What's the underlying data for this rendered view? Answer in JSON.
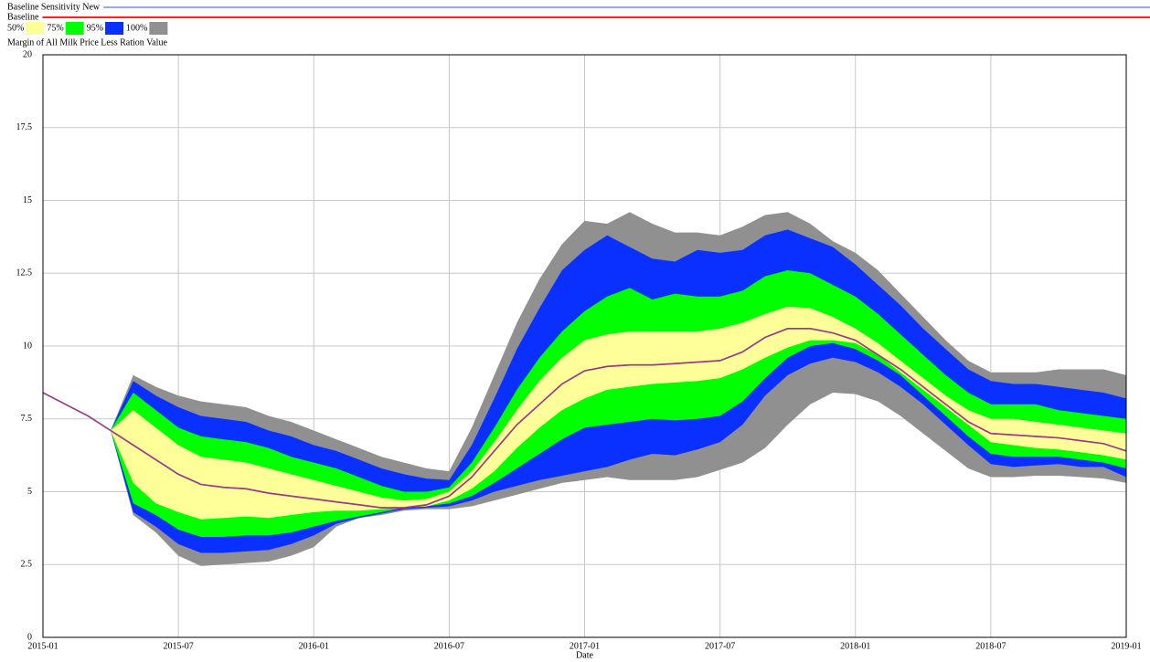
{
  "chart_data": {
    "type": "sensitivity",
    "title": "Margin of All Milk Price Less Ration Value",
    "x_label": "Date",
    "x": [
      "2015-01",
      "2015-02",
      "2015-03",
      "2015-04",
      "2015-05",
      "2015-06",
      "2015-07",
      "2015-08",
      "2015-09",
      "2015-10",
      "2015-11",
      "2015-12",
      "2016-01",
      "2016-02",
      "2016-03",
      "2016-04",
      "2016-05",
      "2016-06",
      "2016-07",
      "2016-08",
      "2016-09",
      "2016-10",
      "2016-11",
      "2016-12",
      "2017-01",
      "2017-02",
      "2017-03",
      "2017-04",
      "2017-05",
      "2017-06",
      "2017-07",
      "2017-08",
      "2017-09",
      "2017-10",
      "2017-11",
      "2017-12",
      "2018-01",
      "2018-02",
      "2018-03",
      "2018-04",
      "2018-05",
      "2018-06",
      "2018-07",
      "2018-08",
      "2018-09",
      "2018-10",
      "2018-11",
      "2018-12",
      "2019-01"
    ],
    "xticks": [
      "2015-01",
      "2015-07",
      "2016-01",
      "2016-07",
      "2017-01",
      "2017-07",
      "2018-01",
      "2018-07",
      "2019-01"
    ],
    "ylim": [
      0,
      20
    ],
    "yticks": [
      0,
      2.5,
      5,
      7.5,
      10,
      12.5,
      15,
      17.5,
      20
    ],
    "grid": true,
    "series": [
      {
        "name": "Baseline Sensitivity New",
        "color": "#3050ff",
        "values": [
          8.4,
          8.0,
          7.6,
          7.1,
          6.6,
          6.1,
          5.6,
          5.25,
          5.15,
          5.1,
          4.95,
          4.85,
          4.75,
          4.65,
          4.55,
          4.45,
          4.45,
          4.55,
          4.85,
          5.5,
          6.4,
          7.3,
          8.0,
          8.7,
          9.15,
          9.3,
          9.35,
          9.35,
          9.4,
          9.45,
          9.5,
          9.8,
          10.3,
          10.6,
          10.6,
          10.45,
          10.2,
          9.7,
          9.2,
          8.6,
          8.0,
          7.4,
          7.0,
          6.95,
          6.9,
          6.85,
          6.75,
          6.65,
          6.4
        ]
      },
      {
        "name": "Baseline",
        "color": "#ff2020",
        "values": [
          8.4,
          8.0,
          7.6,
          7.1,
          6.6,
          6.1,
          5.6,
          5.25,
          5.15,
          5.1,
          4.95,
          4.85,
          4.75,
          4.65,
          4.55,
          4.45,
          4.45,
          4.55,
          4.85,
          5.5,
          6.4,
          7.3,
          8.0,
          8.7,
          9.15,
          9.3,
          9.35,
          9.35,
          9.4,
          9.45,
          9.5,
          9.8,
          10.3,
          10.6,
          10.6,
          10.45,
          10.2,
          9.7,
          9.2,
          8.6,
          8.0,
          7.4,
          7.0,
          6.95,
          6.9,
          6.85,
          6.75,
          6.65,
          6.4
        ]
      }
    ],
    "bands": [
      {
        "name": "50%",
        "color": "#ffff99",
        "upper": [
          null,
          null,
          null,
          7.1,
          7.8,
          7.2,
          6.6,
          6.2,
          6.1,
          6.0,
          5.8,
          5.6,
          5.4,
          5.2,
          5.0,
          4.8,
          4.7,
          4.75,
          5.0,
          5.7,
          6.7,
          7.8,
          8.8,
          9.6,
          10.2,
          10.4,
          10.5,
          10.5,
          10.5,
          10.5,
          10.6,
          10.8,
          11.1,
          11.35,
          11.3,
          11.0,
          10.6,
          10.1,
          9.5,
          8.9,
          8.3,
          7.8,
          7.5,
          7.5,
          7.4,
          7.3,
          7.2,
          7.1,
          7.0
        ],
        "lower": [
          null,
          null,
          null,
          7.1,
          5.3,
          4.6,
          4.3,
          4.05,
          4.1,
          4.15,
          4.1,
          4.2,
          4.3,
          4.35,
          4.35,
          4.4,
          4.45,
          4.5,
          4.7,
          5.1,
          5.7,
          6.5,
          7.2,
          7.8,
          8.2,
          8.5,
          8.6,
          8.7,
          8.75,
          8.8,
          8.9,
          9.2,
          9.6,
          9.95,
          10.2,
          10.2,
          10.1,
          9.7,
          9.1,
          8.5,
          7.9,
          7.3,
          6.7,
          6.6,
          6.5,
          6.45,
          6.35,
          6.25,
          6.1
        ]
      },
      {
        "name": "75%",
        "color": "#00ff00",
        "upper": [
          null,
          null,
          null,
          7.1,
          8.4,
          7.8,
          7.2,
          6.9,
          6.8,
          6.7,
          6.5,
          6.2,
          6.0,
          5.8,
          5.5,
          5.2,
          5.0,
          5.0,
          5.15,
          6.0,
          7.2,
          8.5,
          9.6,
          10.5,
          11.2,
          11.7,
          12.0,
          11.6,
          11.8,
          11.7,
          11.7,
          11.9,
          12.4,
          12.6,
          12.5,
          12.1,
          11.7,
          11.1,
          10.4,
          9.7,
          9.0,
          8.4,
          8.0,
          8.0,
          8.0,
          7.8,
          7.7,
          7.6,
          7.5
        ],
        "lower": [
          null,
          null,
          null,
          7.1,
          4.6,
          4.2,
          3.7,
          3.45,
          3.45,
          3.5,
          3.5,
          3.6,
          3.8,
          4.0,
          4.15,
          4.3,
          4.45,
          4.5,
          4.6,
          4.85,
          5.3,
          5.8,
          6.3,
          6.8,
          7.2,
          7.3,
          7.4,
          7.5,
          7.45,
          7.5,
          7.6,
          8.1,
          8.9,
          9.6,
          10.0,
          10.1,
          9.9,
          9.5,
          9.0,
          8.3,
          7.6,
          6.9,
          6.3,
          6.2,
          6.2,
          6.2,
          6.1,
          6.0,
          5.8
        ]
      },
      {
        "name": "95%",
        "color": "#0a30ff",
        "upper": [
          null,
          null,
          null,
          7.1,
          8.8,
          8.3,
          7.9,
          7.6,
          7.5,
          7.4,
          7.1,
          6.9,
          6.6,
          6.4,
          6.1,
          5.8,
          5.6,
          5.45,
          5.4,
          6.6,
          8.2,
          9.9,
          11.3,
          12.6,
          13.3,
          13.8,
          13.4,
          13.0,
          12.9,
          13.3,
          13.2,
          13.3,
          13.8,
          14.0,
          13.7,
          13.4,
          12.8,
          12.1,
          11.4,
          10.6,
          9.9,
          9.2,
          8.8,
          8.7,
          8.7,
          8.6,
          8.5,
          8.4,
          8.2
        ],
        "lower": [
          null,
          null,
          null,
          7.1,
          4.3,
          3.8,
          3.2,
          2.9,
          2.9,
          2.95,
          3.0,
          3.2,
          3.5,
          3.9,
          4.1,
          4.25,
          4.4,
          4.45,
          4.5,
          4.7,
          5.0,
          5.2,
          5.4,
          5.55,
          5.7,
          5.85,
          6.1,
          6.3,
          6.25,
          6.45,
          6.7,
          7.3,
          8.3,
          9.0,
          9.4,
          9.6,
          9.45,
          9.1,
          8.6,
          8.0,
          7.3,
          6.6,
          5.95,
          5.85,
          5.9,
          5.95,
          5.85,
          5.85,
          5.5
        ]
      },
      {
        "name": "100%",
        "color": "#909090",
        "upper": [
          null,
          null,
          null,
          7.1,
          9.0,
          8.6,
          8.3,
          8.1,
          8.0,
          7.9,
          7.6,
          7.4,
          7.1,
          6.8,
          6.5,
          6.2,
          6.0,
          5.8,
          5.7,
          7.2,
          9.0,
          10.8,
          12.3,
          13.5,
          14.3,
          14.2,
          14.6,
          14.2,
          13.9,
          13.9,
          13.8,
          14.1,
          14.5,
          14.6,
          14.2,
          13.6,
          13.2,
          12.6,
          11.8,
          11.0,
          10.2,
          9.5,
          9.1,
          9.1,
          9.1,
          9.2,
          9.2,
          9.2,
          9.0
        ],
        "lower": [
          null,
          null,
          null,
          7.1,
          4.2,
          3.6,
          2.8,
          2.45,
          2.5,
          2.55,
          2.6,
          2.8,
          3.1,
          3.8,
          4.1,
          4.2,
          4.35,
          4.4,
          4.4,
          4.5,
          4.7,
          4.9,
          5.1,
          5.3,
          5.4,
          5.5,
          5.4,
          5.4,
          5.4,
          5.5,
          5.75,
          6.0,
          6.5,
          7.3,
          8.0,
          8.4,
          8.35,
          8.1,
          7.6,
          7.0,
          6.4,
          5.8,
          5.5,
          5.5,
          5.55,
          5.55,
          5.5,
          5.45,
          5.3
        ]
      }
    ]
  }
}
